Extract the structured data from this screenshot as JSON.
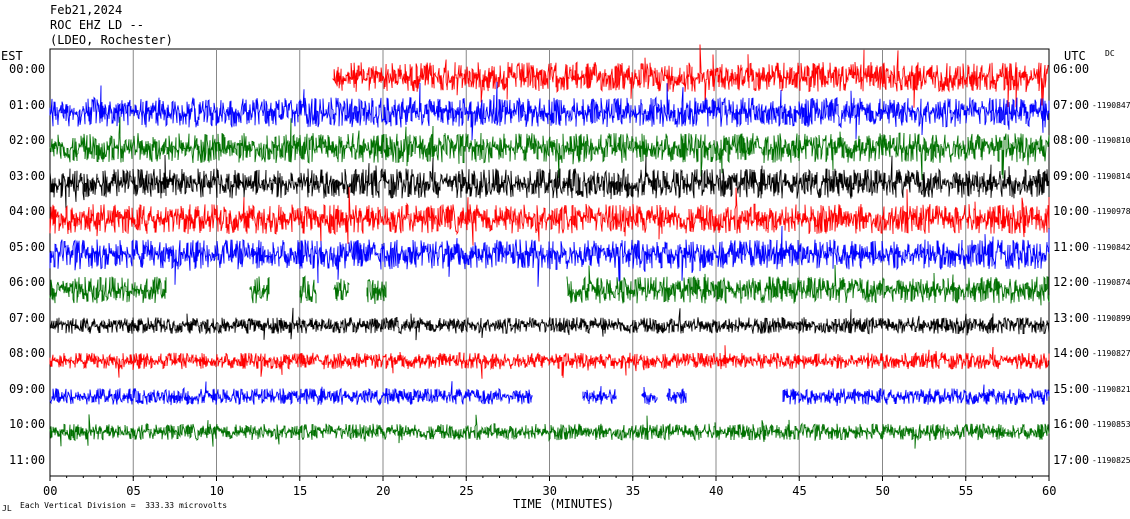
{
  "header": {
    "date": "Feb21,2024",
    "station": "ROC EHZ LD --",
    "network": "(LDEO, Rochester)"
  },
  "left_axis_label": "EST",
  "right_axis_label": "UTC",
  "dc_label": "DC",
  "footer": {
    "scale_text": "Each Vertical Division =  333.33 microvolts",
    "corner_mark": "JL"
  },
  "chart_data": {
    "type": "line",
    "xlabel": "TIME (MINUTES)",
    "xlim": [
      0,
      60
    ],
    "x_ticks": [
      "00",
      "05",
      "10",
      "15",
      "20",
      "25",
      "30",
      "35",
      "40",
      "45",
      "50",
      "55",
      "60"
    ],
    "grid": true,
    "series_colors": [
      "#ff0000",
      "#0000ff",
      "#007000",
      "#000000"
    ],
    "rows": [
      {
        "est": "00:00",
        "utc": "06:00",
        "dc": "",
        "color": "#ff0000",
        "amp": 1.0,
        "start": 17,
        "gaps": []
      },
      {
        "est": "01:00",
        "utc": "07:00",
        "dc": "1190847",
        "color": "#0000ff",
        "amp": 1.0,
        "start": 0,
        "gaps": []
      },
      {
        "est": "02:00",
        "utc": "08:00",
        "dc": "1190810",
        "color": "#007000",
        "amp": 1.0,
        "start": 0,
        "gaps": []
      },
      {
        "est": "03:00",
        "utc": "09:00",
        "dc": "1190814",
        "color": "#000000",
        "amp": 1.0,
        "start": 0,
        "gaps": []
      },
      {
        "est": "04:00",
        "utc": "10:00",
        "dc": "1190978",
        "color": "#ff0000",
        "amp": 1.0,
        "start": 0,
        "gaps": []
      },
      {
        "est": "05:00",
        "utc": "11:00",
        "dc": "1190842",
        "color": "#0000ff",
        "amp": 1.0,
        "start": 0,
        "gaps": []
      },
      {
        "est": "06:00",
        "utc": "12:00",
        "dc": "1190874",
        "color": "#007000",
        "amp": 0.9,
        "start": 0,
        "gaps": [
          [
            7,
            12
          ],
          [
            13.2,
            15
          ],
          [
            16,
            17
          ],
          [
            18,
            19
          ],
          [
            20.2,
            31
          ]
        ]
      },
      {
        "est": "07:00",
        "utc": "13:00",
        "dc": "1190899",
        "color": "#000000",
        "amp": 0.55,
        "start": 0,
        "gaps": []
      },
      {
        "est": "08:00",
        "utc": "14:00",
        "dc": "1190827",
        "color": "#ff0000",
        "amp": 0.55,
        "start": 0,
        "gaps": []
      },
      {
        "est": "09:00",
        "utc": "15:00",
        "dc": "1190821",
        "color": "#0000ff",
        "amp": 0.55,
        "start": 0,
        "gaps": [
          [
            29,
            32
          ],
          [
            34,
            35.5
          ],
          [
            36.5,
            37
          ],
          [
            38.2,
            44
          ]
        ]
      },
      {
        "est": "10:00",
        "utc": "16:00",
        "dc": "1190853",
        "color": "#007000",
        "amp": 0.55,
        "start": 0,
        "gaps": []
      },
      {
        "est": "11:00",
        "utc": "17:00",
        "dc": "1190825",
        "color": "#000000",
        "amp": 0.0,
        "start": 0,
        "gaps": []
      }
    ]
  }
}
